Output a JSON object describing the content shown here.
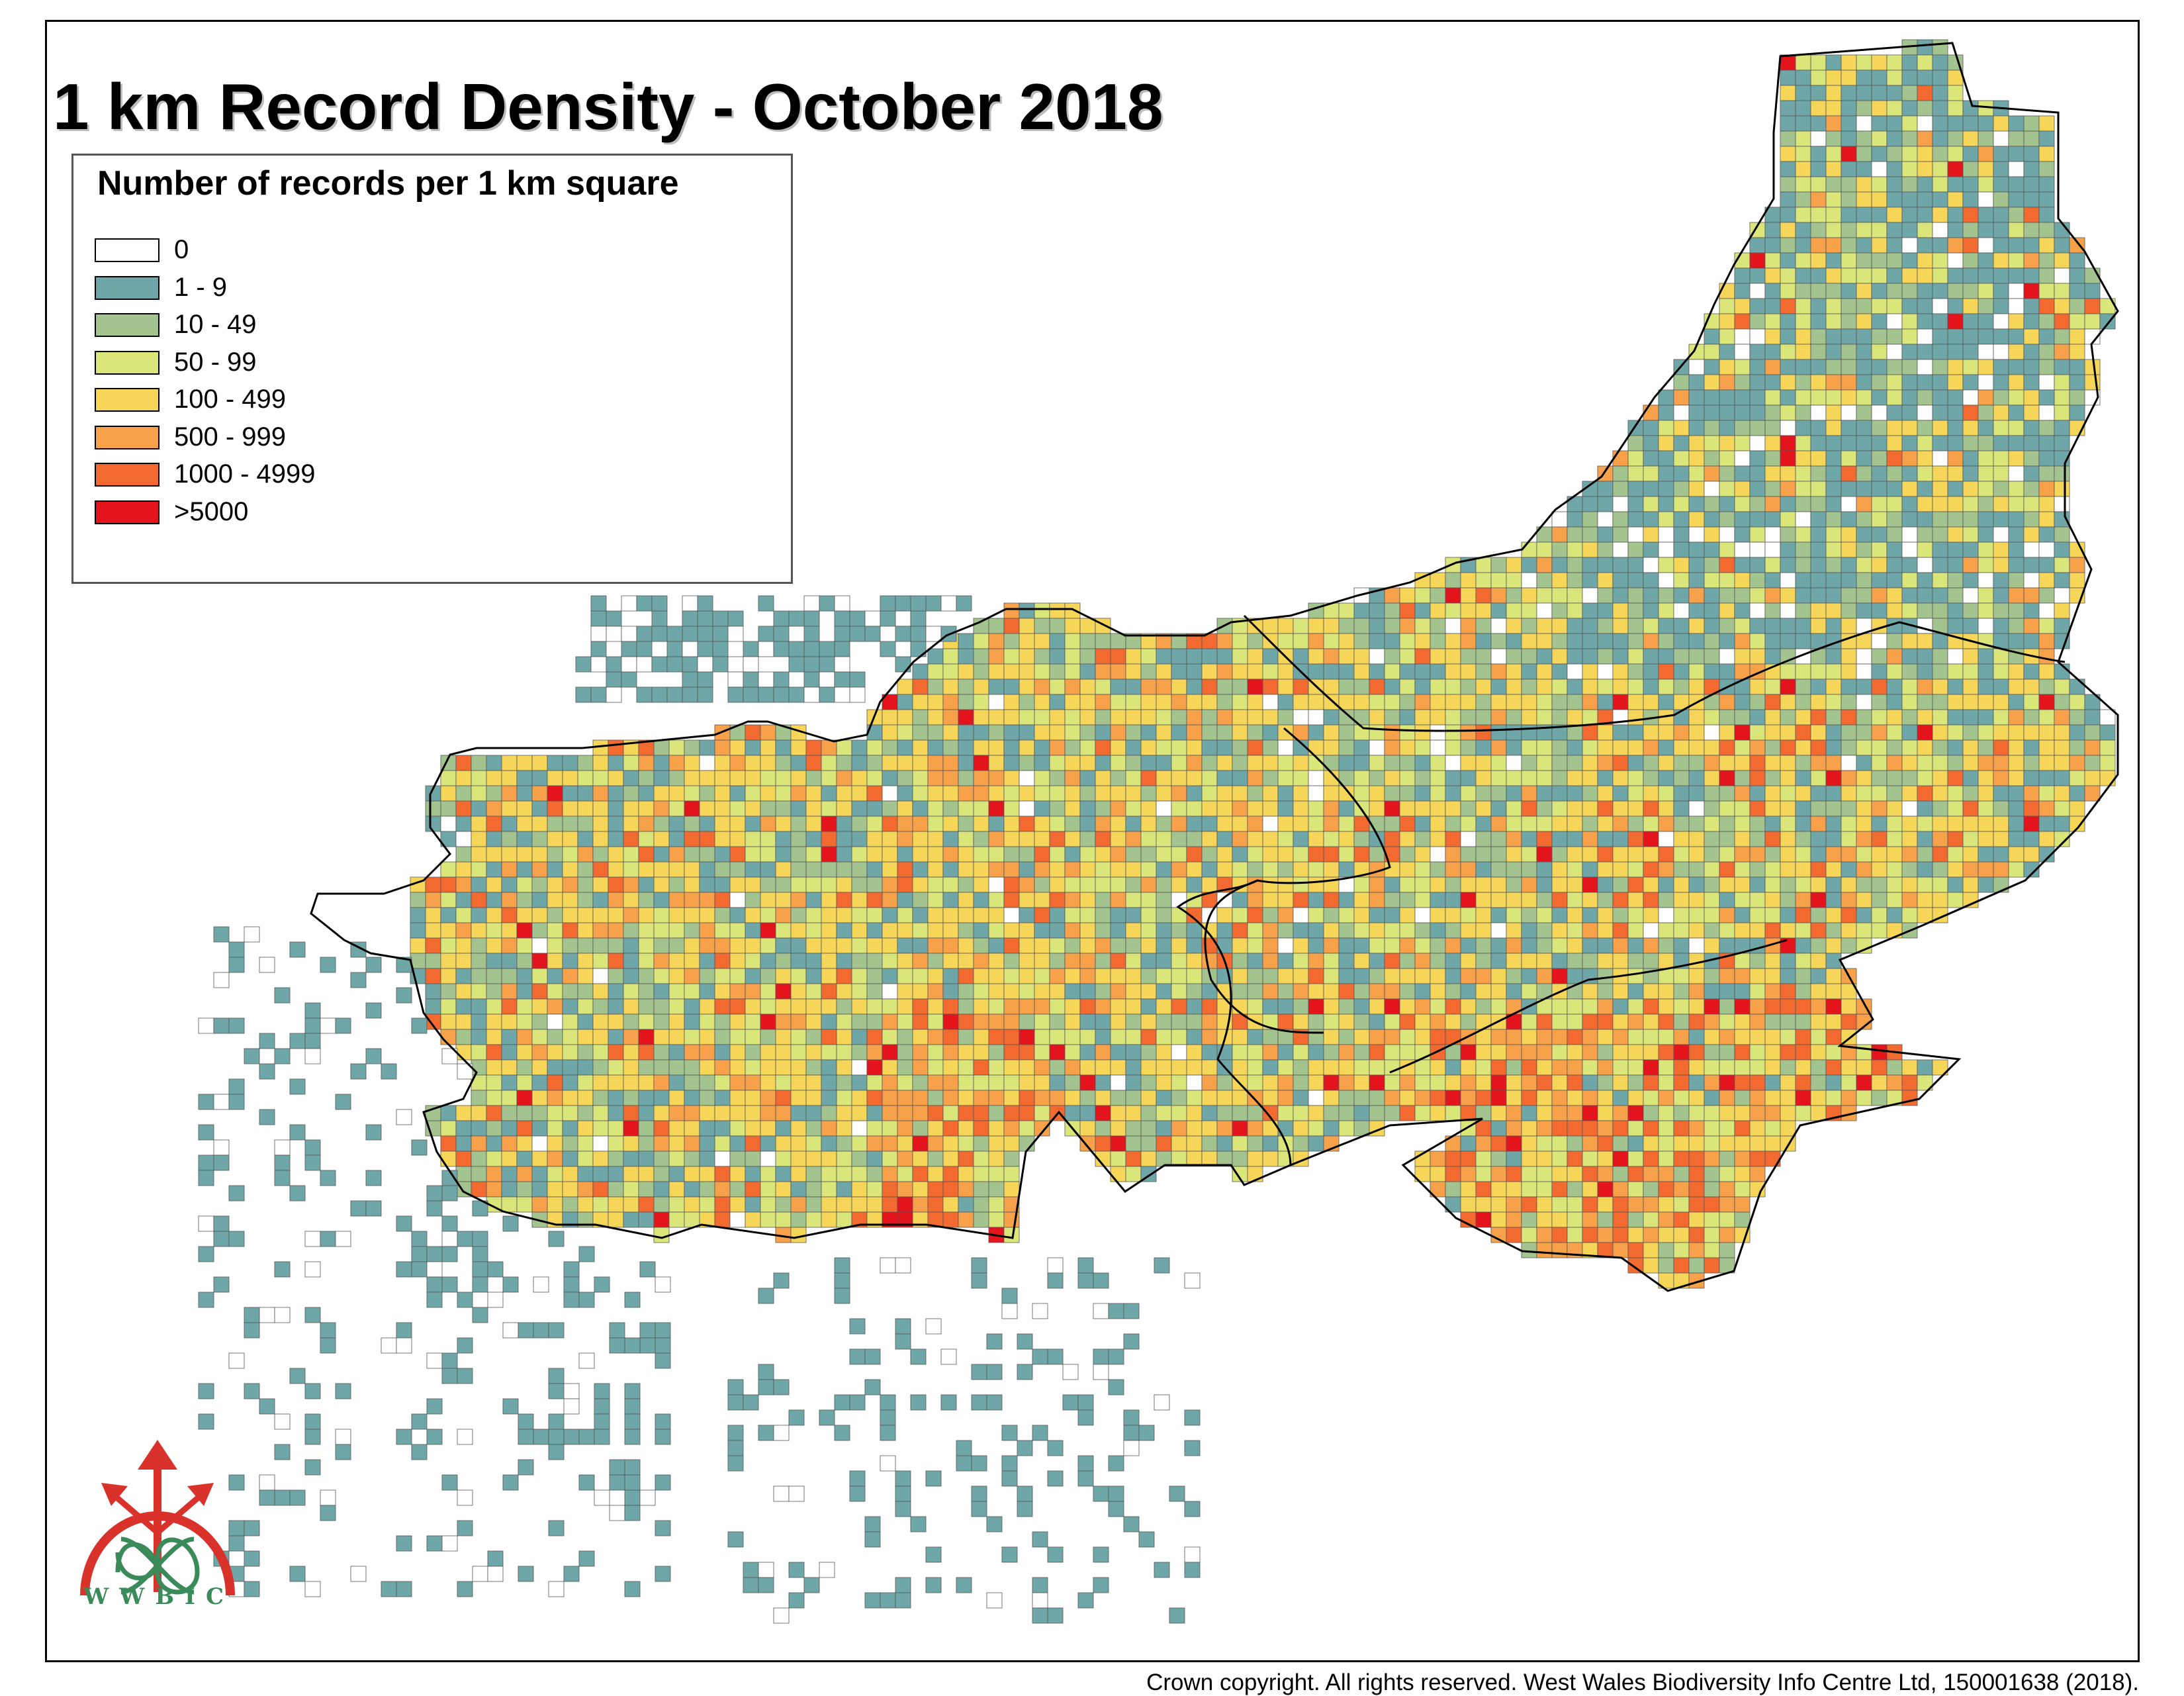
{
  "title": "1 km Record Density - October 2018",
  "legend": {
    "title": "Number of records per 1 km square",
    "items": [
      {
        "label": "0",
        "color": "#ffffff"
      },
      {
        "label": "1 - 9",
        "color": "#6fa7a8"
      },
      {
        "label": "10 - 49",
        "color": "#a3c48e"
      },
      {
        "label": "50 - 99",
        "color": "#dbe67a"
      },
      {
        "label": "100 - 499",
        "color": "#f6d659"
      },
      {
        "label": "500 - 999",
        "color": "#f7a24a"
      },
      {
        "label": "1000 - 4999",
        "color": "#f26a2f"
      },
      {
        "label": ">5000",
        "color": "#e3141b"
      }
    ]
  },
  "logo": {
    "text": "WWBIC",
    "color": "#d9322b",
    "accent": "#3a8a5a"
  },
  "copyright": "Crown copyright. All rights reserved. West Wales Biodiversity Info Centre Ltd, 150001638 (2018)."
}
